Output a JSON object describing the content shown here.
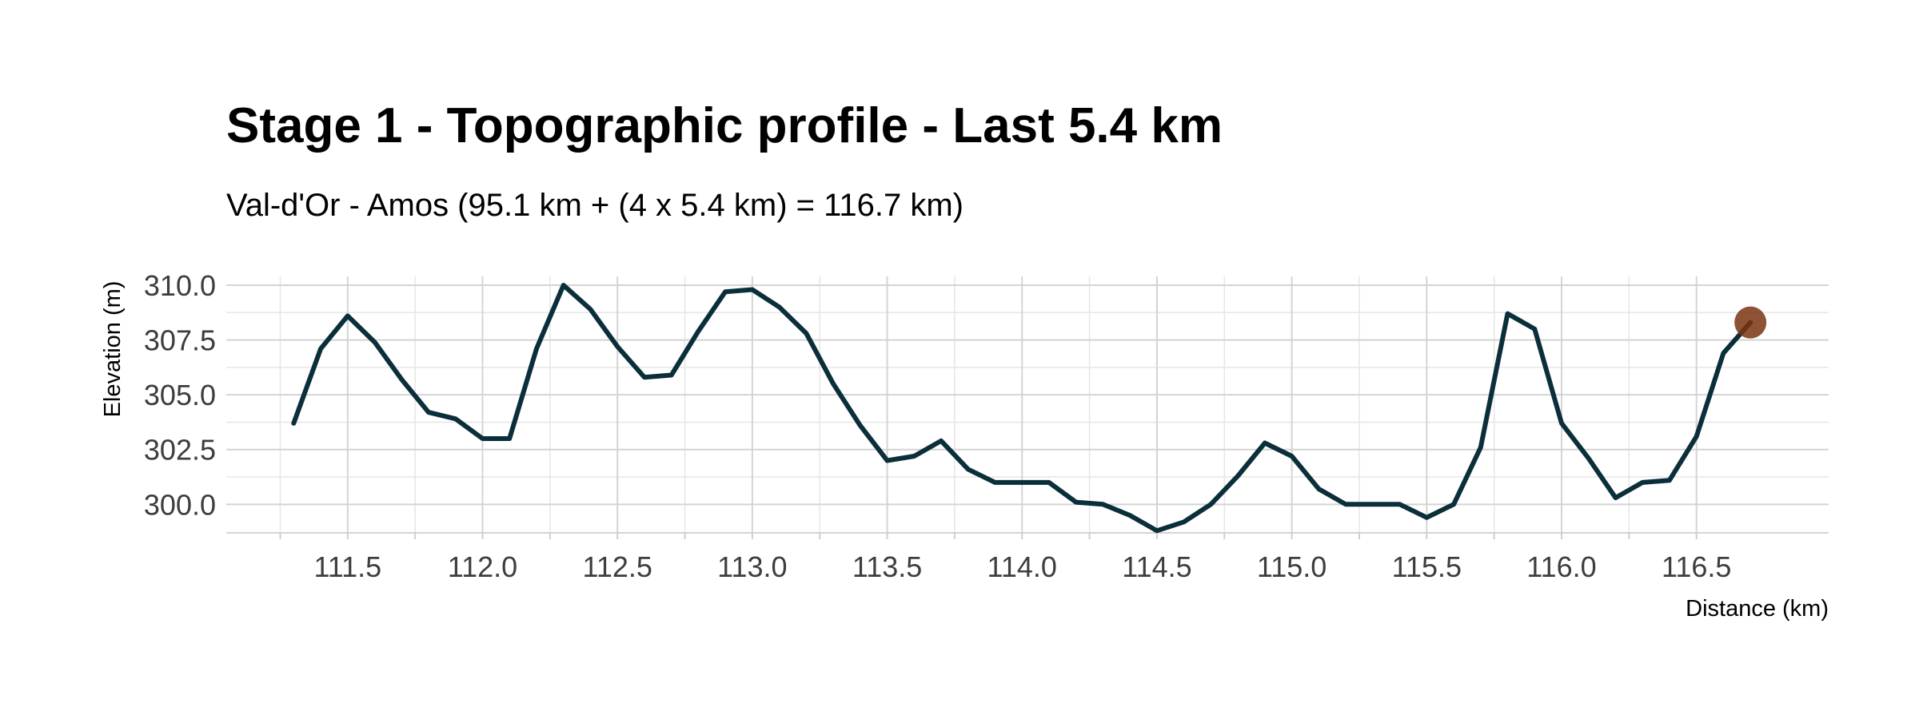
{
  "chart_data": {
    "type": "line",
    "title": "Stage 1 - Topographic profile - Last 5.4 km",
    "subtitle": "Val-d'Or - Amos (95.1 km + (4 x 5.4 km) = 116.7 km)",
    "xlabel": "Distance (km)",
    "ylabel": "Elevation (m)",
    "xlim": [
      111.05,
      116.99
    ],
    "ylim": [
      298.7,
      310.4
    ],
    "x_ticks": [
      "111.5",
      "112.0",
      "112.5",
      "113.0",
      "113.5",
      "114.0",
      "114.5",
      "115.0",
      "115.5",
      "116.0",
      "116.5"
    ],
    "y_ticks": [
      "300.0",
      "302.5",
      "305.0",
      "307.5",
      "310.0"
    ],
    "grid": true,
    "line_color": "#0b2f3a",
    "marker_color": "#7a3410",
    "series": [
      {
        "x": [
          111.3,
          111.4,
          111.5,
          111.6,
          111.7,
          111.8,
          111.9,
          112.0,
          112.1,
          112.2,
          112.3,
          112.4,
          112.5,
          112.6,
          112.7,
          112.8,
          112.9,
          113.0,
          113.1,
          113.2,
          113.3,
          113.4,
          113.5,
          113.6,
          113.7,
          113.8,
          113.9,
          114.0,
          114.1,
          114.2,
          114.3,
          114.4,
          114.5,
          114.6,
          114.7,
          114.8,
          114.9,
          115.0,
          115.1,
          115.2,
          115.3,
          115.4,
          115.5,
          115.6,
          115.7,
          115.8,
          115.9,
          116.0,
          116.1,
          116.2,
          116.3,
          116.4,
          116.5,
          116.6,
          116.7
        ],
        "values": [
          303.7,
          307.1,
          308.6,
          307.4,
          305.7,
          304.2,
          303.9,
          303.0,
          303.0,
          307.1,
          310.0,
          308.9,
          307.2,
          305.8,
          305.9,
          307.9,
          309.7,
          309.8,
          309.0,
          307.8,
          305.5,
          303.6,
          302.0,
          302.2,
          302.9,
          301.6,
          301.0,
          301.0,
          301.0,
          300.1,
          300.0,
          299.5,
          298.8,
          299.2,
          300.0,
          301.3,
          302.8,
          302.2,
          300.7,
          300.0,
          300.0,
          300.0,
          299.4,
          300.0,
          302.6,
          308.7,
          308.0,
          303.7,
          302.1,
          300.3,
          301.0,
          301.1,
          303.1,
          306.9,
          308.3
        ]
      }
    ],
    "marker": {
      "x": 116.7,
      "y": 308.3
    }
  }
}
